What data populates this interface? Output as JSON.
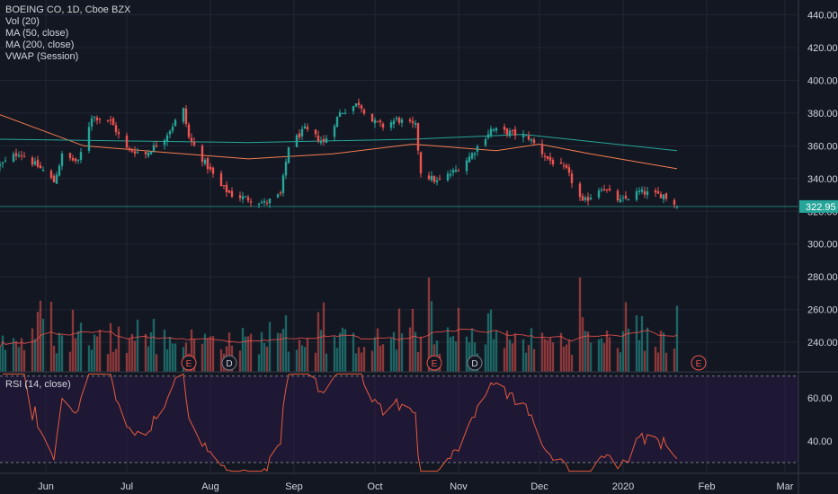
{
  "legend": [
    "BOEING CO, 1D, Cboe BZX",
    "Vol (20)",
    "MA (50, close)",
    "MA (200, close)",
    "VWAP (Session)"
  ],
  "rsi_label": "RSI (14, close)",
  "last_price_label": "322.95",
  "events": [
    {
      "letter": "E",
      "date": "2019-07-24"
    },
    {
      "letter": "D",
      "date": "2019-08-08"
    },
    {
      "letter": "E",
      "date": "2019-10-23"
    },
    {
      "letter": "D",
      "date": "2019-11-07"
    },
    {
      "letter": "E",
      "date": "2020-01-29"
    }
  ],
  "colors": {
    "background": "#131722",
    "grid": "#232734",
    "up": "#26a69a",
    "down": "#ef5350",
    "ma50": "#f57c50",
    "ma200": "#26a69a",
    "rsi_line": "#e65a3c",
    "rsi_band": "#2a1a45",
    "axis_text": "#d1d4dc"
  },
  "chart_data": [
    {
      "type": "candlestick",
      "title": "BOEING CO, 1D, Cboe BZX",
      "x_range": [
        "2019-05-15",
        "2020-03-06"
      ],
      "x_tick_labels": [
        "Jun",
        "Jul",
        "Aug",
        "Sep",
        "Oct",
        "Nov",
        "Dec",
        "2020",
        "Feb",
        "Mar"
      ],
      "x_tick_dates": [
        "2019-06-01",
        "2019-07-01",
        "2019-08-01",
        "2019-09-01",
        "2019-10-01",
        "2019-11-01",
        "2019-12-01",
        "2020-01-01",
        "2020-02-01",
        "2020-03-01"
      ],
      "ylim": [
        222,
        449
      ],
      "y_ticks": [
        240,
        260,
        280,
        300,
        320,
        340,
        360,
        380,
        400,
        420,
        440
      ],
      "grid": true,
      "last_price": 322.95,
      "close_path": [
        [
          "2019-05-15",
          348
        ],
        [
          "2019-05-22",
          356
        ],
        [
          "2019-05-31",
          345
        ],
        [
          "2019-06-04",
          338
        ],
        [
          "2019-06-07",
          354
        ],
        [
          "2019-06-13",
          350
        ],
        [
          "2019-06-18",
          378
        ],
        [
          "2019-06-25",
          375
        ],
        [
          "2019-07-01",
          358
        ],
        [
          "2019-07-08",
          355
        ],
        [
          "2019-07-15",
          365
        ],
        [
          "2019-07-19",
          375
        ],
        [
          "2019-07-22",
          382
        ],
        [
          "2019-07-24",
          365
        ],
        [
          "2019-07-29",
          352
        ],
        [
          "2019-08-05",
          335
        ],
        [
          "2019-08-09",
          330
        ],
        [
          "2019-08-14",
          328
        ],
        [
          "2019-08-21",
          325
        ],
        [
          "2019-08-27",
          330
        ],
        [
          "2019-08-30",
          360
        ],
        [
          "2019-09-05",
          370
        ],
        [
          "2019-09-12",
          362
        ],
        [
          "2019-09-18",
          380
        ],
        [
          "2019-09-25",
          386
        ],
        [
          "2019-09-30",
          375
        ],
        [
          "2019-10-04",
          372
        ],
        [
          "2019-10-09",
          376
        ],
        [
          "2019-10-16",
          372
        ],
        [
          "2019-10-18",
          344
        ],
        [
          "2019-10-24",
          338
        ],
        [
          "2019-10-31",
          345
        ],
        [
          "2019-11-06",
          355
        ],
        [
          "2019-11-13",
          370
        ],
        [
          "2019-11-20",
          368
        ],
        [
          "2019-11-27",
          365
        ],
        [
          "2019-12-04",
          352
        ],
        [
          "2019-12-11",
          345
        ],
        [
          "2019-12-17",
          325
        ],
        [
          "2019-12-24",
          335
        ],
        [
          "2019-12-31",
          326
        ],
        [
          "2020-01-07",
          332
        ],
        [
          "2020-01-13",
          330
        ],
        [
          "2020-01-16",
          330
        ],
        [
          "2020-01-21",
          323
        ]
      ],
      "ma50": [
        [
          "2019-05-15",
          379
        ],
        [
          "2019-06-15",
          360
        ],
        [
          "2019-07-15",
          356
        ],
        [
          "2019-08-15",
          352
        ],
        [
          "2019-09-15",
          355
        ],
        [
          "2019-10-15",
          361
        ],
        [
          "2019-11-15",
          357
        ],
        [
          "2019-12-01",
          361
        ],
        [
          "2019-12-20",
          355
        ],
        [
          "2020-01-21",
          346
        ]
      ],
      "ma200": [
        [
          "2019-05-15",
          364
        ],
        [
          "2019-08-15",
          362
        ],
        [
          "2019-10-15",
          364
        ],
        [
          "2019-11-25",
          367
        ],
        [
          "2020-01-21",
          357
        ]
      ],
      "volume_bar_scale": "relative (no axis)",
      "volume_spikes": [
        [
          "2019-10-21",
          1.0
        ],
        [
          "2019-10-22",
          0.75
        ],
        [
          "2019-12-16",
          1.0
        ],
        [
          "2020-01-21",
          0.7
        ]
      ]
    },
    {
      "type": "line",
      "title": "RSI (14, close)",
      "ylim": [
        25,
        72
      ],
      "y_ticks": [
        40,
        60
      ],
      "band": [
        30,
        70
      ]
    }
  ]
}
